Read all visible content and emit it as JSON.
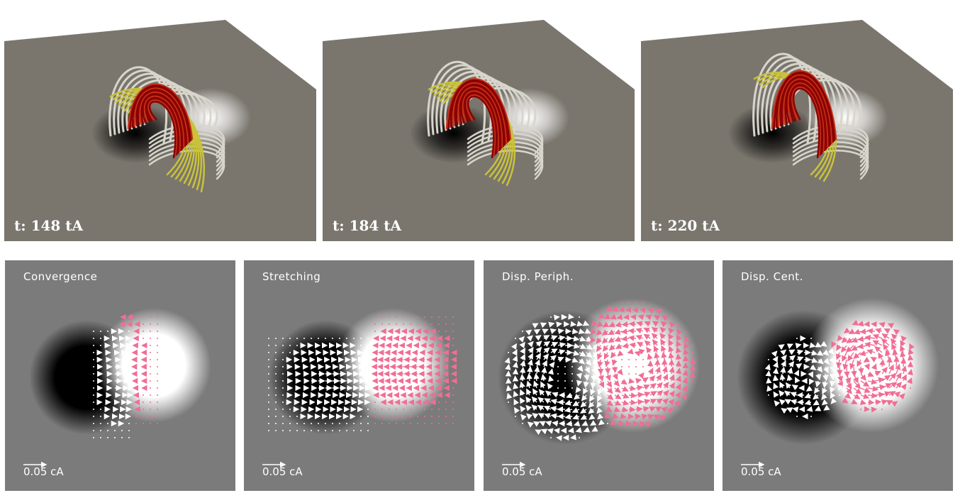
{
  "snapshots": [
    {
      "time_label": "t: 148 tA"
    },
    {
      "time_label": "t: 184 tA"
    },
    {
      "time_label": "t: 220 tA"
    }
  ],
  "flow_panels": [
    {
      "title": "Convergence",
      "scale_label": "0.05 cA",
      "mode": "convergence"
    },
    {
      "title": "Stretching",
      "scale_label": "0.05 cA",
      "mode": "stretching"
    },
    {
      "title": "Disp. Periph.",
      "scale_label": "0.05 cA",
      "mode": "periph"
    },
    {
      "title": "Disp. Cent.",
      "scale_label": "0.05 cA",
      "mode": "central"
    }
  ],
  "colors": {
    "surface": "#7a766e",
    "background_gray": "#7b7b7b",
    "loop_white": "#d8d6cc",
    "loop_yellow": "#c9c23a",
    "loop_red": "#8b0000",
    "arrow_white": "#ffffff",
    "arrow_pink": "#f06e96"
  }
}
